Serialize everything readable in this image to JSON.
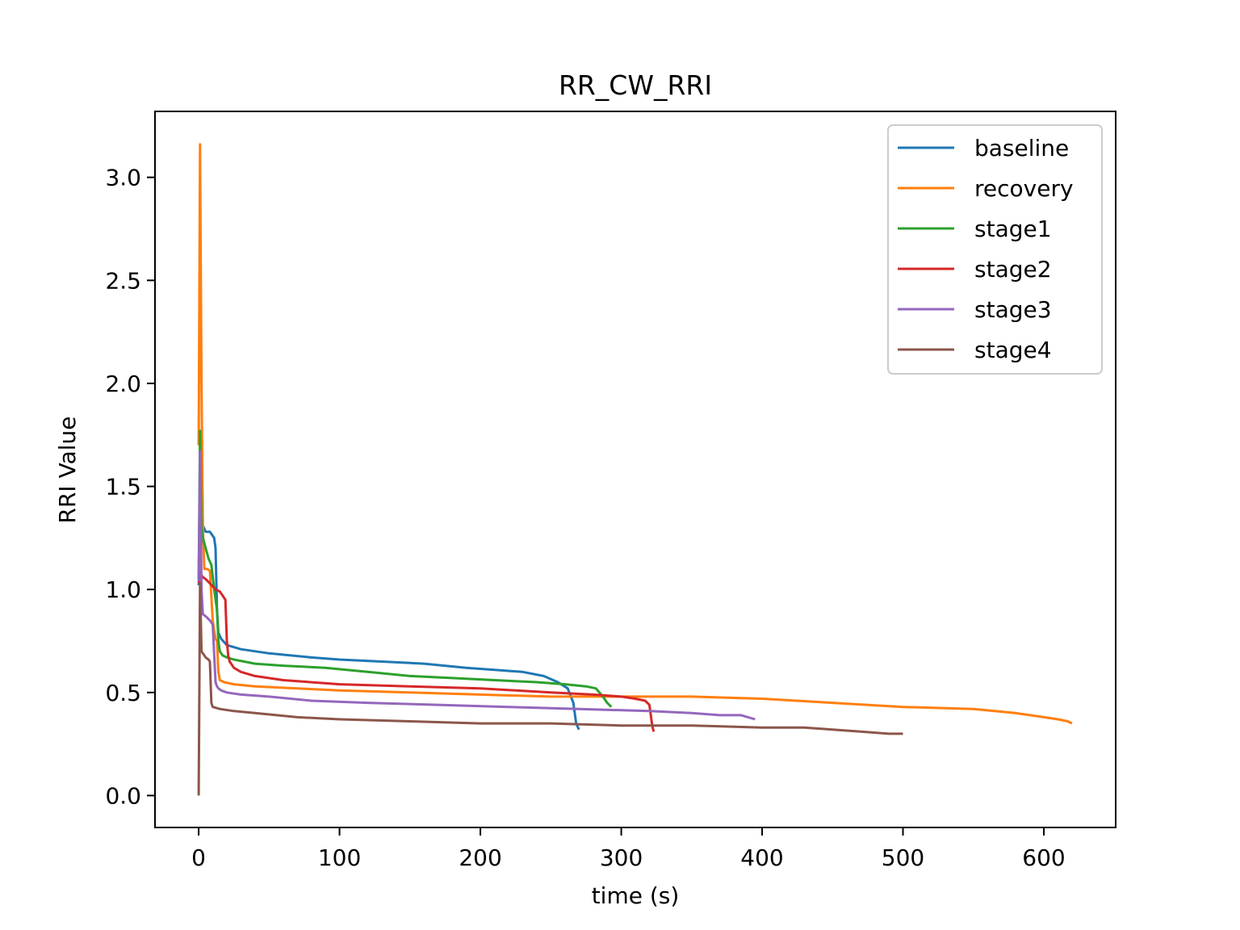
{
  "chart_data": {
    "type": "line",
    "title": "RR_CW_RRI",
    "xlabel": "time (s)",
    "ylabel": "RRI Value",
    "xlim": [
      -31,
      651
    ],
    "ylim": [
      -0.155,
      3.32
    ],
    "xticks": [
      0,
      100,
      200,
      300,
      400,
      500,
      600
    ],
    "yticks": [
      0.0,
      0.5,
      1.0,
      1.5,
      2.0,
      2.5,
      3.0
    ],
    "xtick_labels": [
      "0",
      "100",
      "200",
      "300",
      "400",
      "500",
      "600"
    ],
    "ytick_labels": [
      "0.0",
      "0.5",
      "1.0",
      "1.5",
      "2.0",
      "2.5",
      "3.0"
    ],
    "grid": false,
    "legend_position": "top-right",
    "series": [
      {
        "name": "baseline",
        "color": "#1f77b4",
        "x": [
          0,
          1,
          2,
          3,
          5,
          8,
          11,
          12,
          13,
          14,
          16,
          20,
          30,
          50,
          80,
          100,
          130,
          160,
          190,
          210,
          230,
          245,
          255,
          262,
          266,
          268,
          270
        ],
        "y": [
          1.02,
          1.1,
          1.29,
          1.31,
          1.28,
          1.28,
          1.25,
          1.2,
          0.9,
          0.79,
          0.76,
          0.73,
          0.71,
          0.69,
          0.67,
          0.66,
          0.65,
          0.64,
          0.62,
          0.61,
          0.6,
          0.58,
          0.55,
          0.52,
          0.45,
          0.35,
          0.32
        ]
      },
      {
        "name": "recovery",
        "color": "#ff7f0e",
        "x": [
          0,
          1,
          2,
          3,
          4,
          6,
          8,
          10,
          11,
          12,
          13,
          14,
          15,
          18,
          25,
          40,
          70,
          100,
          150,
          200,
          250,
          300,
          350,
          400,
          450,
          500,
          550,
          580,
          600,
          610,
          617,
          620
        ],
        "y": [
          1.7,
          3.16,
          2.0,
          1.3,
          1.1,
          1.1,
          1.09,
          0.85,
          0.8,
          0.76,
          0.75,
          0.6,
          0.56,
          0.55,
          0.54,
          0.53,
          0.52,
          0.51,
          0.5,
          0.49,
          0.48,
          0.48,
          0.48,
          0.47,
          0.45,
          0.43,
          0.42,
          0.4,
          0.38,
          0.37,
          0.36,
          0.35
        ]
      },
      {
        "name": "stage1",
        "color": "#2ca02c",
        "x": [
          0,
          1,
          2,
          3,
          5,
          7,
          9,
          11,
          13,
          14,
          15,
          17,
          20,
          25,
          40,
          60,
          90,
          120,
          150,
          180,
          210,
          240,
          260,
          275,
          282,
          287,
          290,
          293
        ],
        "y": [
          1.05,
          1.77,
          1.3,
          1.25,
          1.2,
          1.15,
          1.12,
          1.0,
          0.9,
          0.75,
          0.7,
          0.68,
          0.67,
          0.66,
          0.64,
          0.63,
          0.62,
          0.6,
          0.58,
          0.57,
          0.56,
          0.55,
          0.54,
          0.53,
          0.52,
          0.48,
          0.45,
          0.43
        ]
      },
      {
        "name": "stage2",
        "color": "#d62728",
        "x": [
          0,
          1,
          2,
          3,
          5,
          8,
          12,
          15,
          17,
          19,
          20,
          21,
          22,
          25,
          30,
          40,
          60,
          100,
          150,
          200,
          250,
          280,
          300,
          310,
          317,
          320,
          322,
          323
        ],
        "y": [
          1.03,
          1.07,
          1.07,
          1.06,
          1.05,
          1.03,
          1.0,
          0.99,
          0.97,
          0.95,
          0.75,
          0.68,
          0.65,
          0.62,
          0.6,
          0.58,
          0.56,
          0.54,
          0.53,
          0.52,
          0.5,
          0.49,
          0.48,
          0.47,
          0.46,
          0.44,
          0.34,
          0.31
        ]
      },
      {
        "name": "stage3",
        "color": "#9467bd",
        "x": [
          0,
          1,
          2,
          3,
          5,
          8,
          10,
          12,
          13,
          14,
          16,
          20,
          30,
          50,
          80,
          120,
          170,
          220,
          270,
          320,
          350,
          370,
          385,
          390,
          395
        ],
        "y": [
          1.04,
          1.67,
          1.0,
          0.88,
          0.87,
          0.85,
          0.83,
          0.55,
          0.53,
          0.52,
          0.51,
          0.5,
          0.49,
          0.48,
          0.46,
          0.45,
          0.44,
          0.43,
          0.42,
          0.41,
          0.4,
          0.39,
          0.39,
          0.38,
          0.37
        ]
      },
      {
        "name": "stage4",
        "color": "#8c564b",
        "x": [
          0,
          1,
          2,
          3,
          5,
          7,
          8,
          9,
          10,
          15,
          25,
          40,
          70,
          100,
          150,
          200,
          250,
          300,
          350,
          400,
          430,
          450,
          470,
          490,
          500
        ],
        "y": [
          0.0,
          1.03,
          0.7,
          0.69,
          0.67,
          0.66,
          0.65,
          0.45,
          0.43,
          0.42,
          0.41,
          0.4,
          0.38,
          0.37,
          0.36,
          0.35,
          0.35,
          0.34,
          0.34,
          0.33,
          0.33,
          0.32,
          0.31,
          0.3,
          0.3
        ]
      }
    ]
  }
}
